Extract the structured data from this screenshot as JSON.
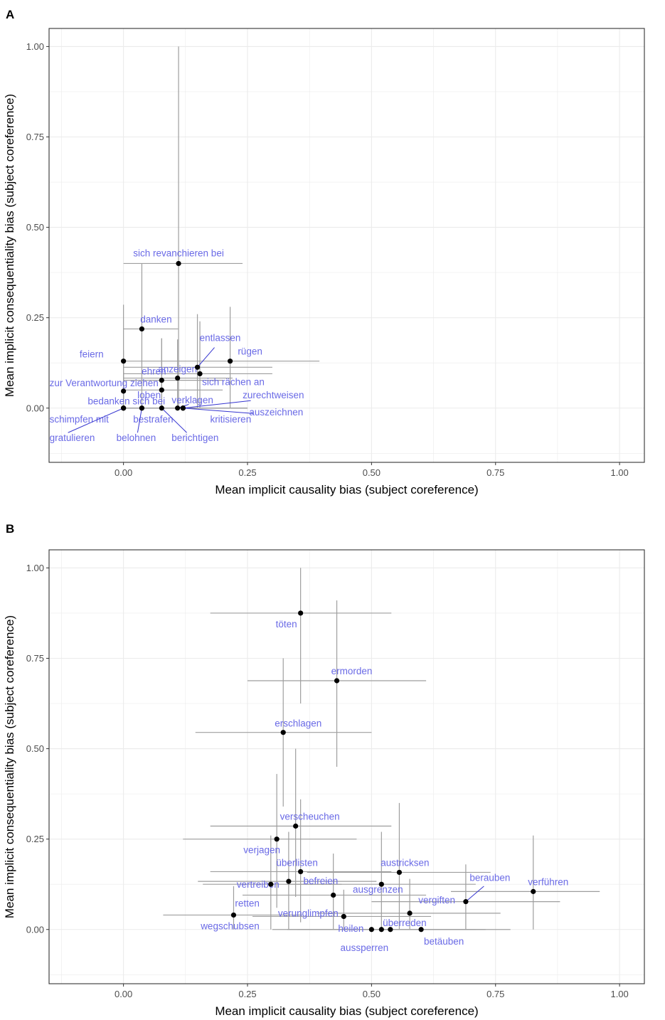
{
  "chart_data": [
    {
      "panel": "A",
      "type": "scatter",
      "xlabel": "Mean implicit causality bias (subject coreference)",
      "ylabel": "Mean implicit consequentiality bias (subject coreference)",
      "xlim": [
        -0.15,
        1.05
      ],
      "ylim": [
        -0.15,
        1.05
      ],
      "x_ticks": [
        "0.00",
        "0.25",
        "0.50",
        "0.75",
        "1.00"
      ],
      "y_ticks": [
        "0.00",
        "0.25",
        "0.50",
        "0.75",
        "1.00"
      ],
      "grid": true,
      "colors": {
        "point": "#000000",
        "label": "#6a6ae6",
        "errorbar": "#9e9e9e",
        "leader": "#3535d0",
        "grid": "#ebebeb"
      },
      "points": [
        {
          "label": "sich revanchieren bei",
          "x": 0.111,
          "y": 0.4,
          "xerr": [
            0.0,
            0.24
          ],
          "yerr": [
            0.0,
            1.0
          ]
        },
        {
          "label": "danken",
          "x": 0.037,
          "y": 0.219,
          "xerr": [
            0.0,
            0.11
          ],
          "yerr": [
            0.0,
            0.4
          ]
        },
        {
          "label": "feiern",
          "x": 0.0,
          "y": 0.13,
          "xerr": [
            0.0,
            0.0
          ],
          "yerr": [
            0.0,
            0.286
          ]
        },
        {
          "label": "entlassen",
          "x": 0.149,
          "y": 0.113,
          "xerr": [
            0.0,
            0.3
          ],
          "yerr": [
            0.0,
            0.26
          ]
        },
        {
          "label": "rügen",
          "x": 0.215,
          "y": 0.13,
          "xerr": [
            0.0,
            0.395
          ],
          "yerr": [
            0.0,
            0.28
          ]
        },
        {
          "label": "anzeigen",
          "x": 0.109,
          "y": 0.083,
          "xerr": [
            0.0,
            0.22
          ],
          "yerr": [
            0.0,
            0.19
          ]
        },
        {
          "label": "sich rächen an",
          "x": 0.154,
          "y": 0.095,
          "xerr": [
            0.0,
            0.3
          ],
          "yerr": [
            0.0,
            0.24
          ]
        },
        {
          "label": "ehren",
          "x": 0.077,
          "y": 0.077,
          "xerr": [
            0.0,
            0.2
          ],
          "yerr": [
            0.0,
            0.193
          ]
        },
        {
          "label": "zur Verantwortung ziehen",
          "x": 0.0,
          "y": 0.047,
          "xerr": [
            0.0,
            0.0
          ],
          "yerr": [
            0.0,
            0.16
          ]
        },
        {
          "label": "bedanken sich bei",
          "x": 0.077,
          "y": 0.05,
          "xerr": [
            0.0,
            0.2
          ],
          "yerr": [
            0.0,
            0.193
          ]
        },
        {
          "label": "loben",
          "x": 0.0,
          "y": 0.0,
          "xerr": [
            0.0,
            0.0
          ],
          "yerr": [
            0.0,
            0.1
          ]
        },
        {
          "label": "zurechtweisen",
          "x": 0.12,
          "y": 0.0,
          "xerr": [
            0.0,
            0.25
          ],
          "yerr": [
            0.0,
            0.0
          ]
        },
        {
          "label": "verklagen",
          "x": 0.109,
          "y": 0.0,
          "xerr": [
            0.0,
            0.22
          ],
          "yerr": [
            0.0,
            0.0
          ]
        },
        {
          "label": "auszeichnen",
          "x": 0.12,
          "y": 0.0,
          "xerr": [
            0.0,
            0.25
          ],
          "yerr": [
            0.0,
            0.0
          ]
        },
        {
          "label": "kritisieren",
          "x": 0.12,
          "y": 0.0,
          "xerr": [
            0.0,
            0.25
          ],
          "yerr": [
            0.0,
            0.0
          ]
        },
        {
          "label": "schimpfen mit",
          "x": 0.0,
          "y": 0.0,
          "xerr": [
            0.0,
            0.0
          ],
          "yerr": [
            0.0,
            0.0
          ]
        },
        {
          "label": "bestrafen",
          "x": 0.037,
          "y": 0.0,
          "xerr": [
            0.0,
            0.11
          ],
          "yerr": [
            0.0,
            0.0
          ]
        },
        {
          "label": "gratulieren",
          "x": 0.0,
          "y": 0.0,
          "xerr": [
            0.0,
            0.0
          ],
          "yerr": [
            0.0,
            0.0
          ]
        },
        {
          "label": "belohnen",
          "x": 0.037,
          "y": 0.0,
          "xerr": [
            0.0,
            0.11
          ],
          "yerr": [
            0.0,
            0.0
          ]
        },
        {
          "label": "berichtigen",
          "x": 0.077,
          "y": 0.0,
          "xerr": [
            0.0,
            0.2
          ],
          "yerr": [
            0.0,
            0.0
          ]
        }
      ]
    },
    {
      "panel": "B",
      "type": "scatter",
      "xlabel": "Mean implicit causality bias (subject coreference)",
      "ylabel": "Mean implicit consequentiality bias (subject coreference)",
      "xlim": [
        -0.15,
        1.05
      ],
      "ylim": [
        -0.15,
        1.05
      ],
      "x_ticks": [
        "0.00",
        "0.25",
        "0.50",
        "0.75",
        "1.00"
      ],
      "y_ticks": [
        "0.00",
        "0.25",
        "0.50",
        "0.75",
        "1.00"
      ],
      "grid": true,
      "colors": {
        "point": "#000000",
        "label": "#6a6ae6",
        "errorbar": "#9e9e9e",
        "leader": "#3535d0",
        "grid": "#ebebeb"
      },
      "points": [
        {
          "label": "töten",
          "x": 0.357,
          "y": 0.875,
          "xerr": [
            0.175,
            0.54
          ],
          "yerr": [
            0.625,
            1.0
          ]
        },
        {
          "label": "ermorden",
          "x": 0.43,
          "y": 0.688,
          "xerr": [
            0.25,
            0.61
          ],
          "yerr": [
            0.45,
            0.91
          ]
        },
        {
          "label": "erschlagen",
          "x": 0.322,
          "y": 0.545,
          "xerr": [
            0.145,
            0.5
          ],
          "yerr": [
            0.34,
            0.75
          ]
        },
        {
          "label": "verscheuchen",
          "x": 0.347,
          "y": 0.286,
          "xerr": [
            0.175,
            0.54
          ],
          "yerr": [
            0.09,
            0.5
          ]
        },
        {
          "label": "verjagen",
          "x": 0.309,
          "y": 0.25,
          "xerr": [
            0.12,
            0.47
          ],
          "yerr": [
            0.06,
            0.43
          ]
        },
        {
          "label": "überlisten",
          "x": 0.357,
          "y": 0.16,
          "xerr": [
            0.175,
            0.54
          ],
          "yerr": [
            0.02,
            0.36
          ]
        },
        {
          "label": "austricksen",
          "x": 0.556,
          "y": 0.158,
          "xerr": [
            0.37,
            0.74
          ],
          "yerr": [
            0.0,
            0.35
          ]
        },
        {
          "label": "vertreiben",
          "x": 0.297,
          "y": 0.125,
          "xerr": [
            0.16,
            0.44
          ],
          "yerr": [
            0.0,
            0.26
          ]
        },
        {
          "label": "befreien",
          "x": 0.333,
          "y": 0.133,
          "xerr": [
            0.15,
            0.51
          ],
          "yerr": [
            0.0,
            0.27
          ]
        },
        {
          "label": "ausgrenzen",
          "x": 0.52,
          "y": 0.125,
          "xerr": [
            0.33,
            0.71
          ],
          "yerr": [
            0.0,
            0.27
          ]
        },
        {
          "label": "retten",
          "x": 0.423,
          "y": 0.095,
          "xerr": [
            0.24,
            0.61
          ],
          "yerr": [
            0.0,
            0.21
          ]
        },
        {
          "label": "berauben",
          "x": 0.69,
          "y": 0.077,
          "xerr": [
            0.5,
            0.88
          ],
          "yerr": [
            0.0,
            0.18
          ]
        },
        {
          "label": "verführen",
          "x": 0.826,
          "y": 0.105,
          "xerr": [
            0.66,
            0.96
          ],
          "yerr": [
            0.0,
            0.26
          ]
        },
        {
          "label": "vergiften",
          "x": 0.577,
          "y": 0.045,
          "xerr": [
            0.39,
            0.76
          ],
          "yerr": [
            0.0,
            0.14
          ]
        },
        {
          "label": "verunglimpfen",
          "x": 0.444,
          "y": 0.036,
          "xerr": [
            0.26,
            0.62
          ],
          "yerr": [
            0.0,
            0.11
          ]
        },
        {
          "label": "wegschubsen",
          "x": 0.222,
          "y": 0.04,
          "xerr": [
            0.08,
            0.36
          ],
          "yerr": [
            0.0,
            0.12
          ]
        },
        {
          "label": "heilen",
          "x": 0.5,
          "y": 0.0,
          "xerr": [
            0.3,
            0.7
          ],
          "yerr": [
            0.0,
            0.0
          ]
        },
        {
          "label": "überreden",
          "x": 0.538,
          "y": 0.0,
          "xerr": [
            0.35,
            0.73
          ],
          "yerr": [
            0.0,
            0.0
          ]
        },
        {
          "label": "aussperren",
          "x": 0.52,
          "y": 0.0,
          "xerr": [
            0.33,
            0.71
          ],
          "yerr": [
            0.0,
            0.0
          ]
        },
        {
          "label": "betäuben",
          "x": 0.6,
          "y": 0.0,
          "xerr": [
            0.41,
            0.78
          ],
          "yerr": [
            0.0,
            0.0
          ]
        }
      ]
    }
  ]
}
